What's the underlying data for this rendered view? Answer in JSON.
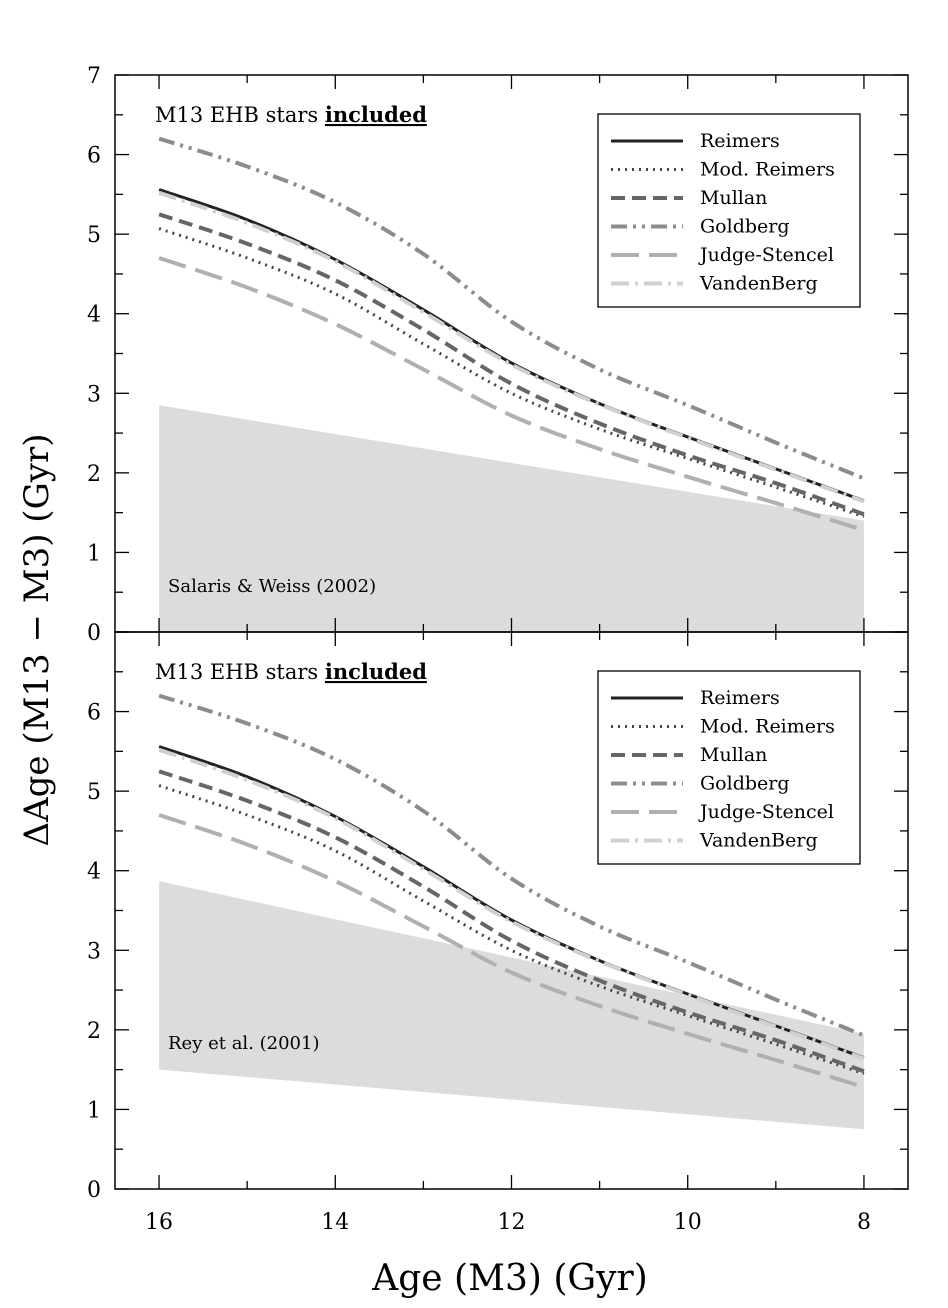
{
  "figure": {
    "xlabel": "Age (M3) (Gyr)",
    "ylabel": "ΔAge (M13 − M3) (Gyr)"
  },
  "styles": {
    "Reimers": {
      "color": "#222222",
      "dash": "",
      "width": 3
    },
    "Mod. Reimers": {
      "color": "#444444",
      "dash": "2 5",
      "width": 3
    },
    "Mullan": {
      "color": "#666666",
      "dash": "14 7",
      "width": 4
    },
    "Goldberg": {
      "color": "#8c8c8c",
      "dash": "16 6 3 6 3 6",
      "width": 4
    },
    "Judge-Stencel": {
      "color": "#b0b0b0",
      "dash": "28 10",
      "width": 4
    },
    "VandenBerg": {
      "color": "#d0d0d0",
      "dash": "18 6 3 6",
      "width": 4
    }
  },
  "chart_data": [
    {
      "type": "line",
      "panel": "top",
      "title": "M13 EHB stars ",
      "title_emphasis": "included",
      "xlim": [
        16.5,
        7.5
      ],
      "ylim": [
        0,
        7
      ],
      "xticks": [
        16,
        14,
        12,
        10,
        8
      ],
      "yticks": [
        0,
        1,
        2,
        3,
        4,
        5,
        6,
        7
      ],
      "legend_position": "top-right",
      "band": {
        "label": "Salaris & Weiss (2002)",
        "x": [
          16,
          8
        ],
        "lower": [
          0,
          0
        ],
        "upper": [
          2.85,
          1.4
        ],
        "color": "#dcdcdc"
      },
      "series": [
        {
          "name": "Reimers",
          "x": [
            16,
            15,
            14,
            13,
            12,
            11,
            10,
            9,
            8
          ],
          "values": [
            5.56,
            5.18,
            4.68,
            4.05,
            3.38,
            2.87,
            2.45,
            2.05,
            1.65
          ]
        },
        {
          "name": "Mod. Reimers",
          "x": [
            16,
            15,
            14,
            13,
            12,
            11,
            10,
            9,
            8
          ],
          "values": [
            5.07,
            4.7,
            4.25,
            3.62,
            3.0,
            2.55,
            2.18,
            1.82,
            1.45
          ]
        },
        {
          "name": "Mullan",
          "x": [
            16,
            15,
            14,
            13,
            12,
            11,
            10,
            9,
            8
          ],
          "values": [
            5.25,
            4.88,
            4.42,
            3.8,
            3.12,
            2.62,
            2.22,
            1.87,
            1.48
          ]
        },
        {
          "name": "Goldberg",
          "x": [
            16,
            15,
            14,
            13,
            12,
            11,
            10,
            9,
            8
          ],
          "values": [
            6.2,
            5.85,
            5.4,
            4.75,
            3.9,
            3.3,
            2.85,
            2.38,
            1.93
          ]
        },
        {
          "name": "Judge-Stencel",
          "x": [
            16,
            15,
            14,
            13,
            12,
            11,
            10,
            9,
            8
          ],
          "values": [
            4.7,
            4.33,
            3.87,
            3.3,
            2.72,
            2.3,
            1.95,
            1.62,
            1.28
          ]
        },
        {
          "name": "VandenBerg",
          "x": [
            16,
            15,
            14,
            13,
            12,
            11,
            10,
            9,
            8
          ],
          "values": [
            5.52,
            5.14,
            4.66,
            4.02,
            3.36,
            2.86,
            2.44,
            2.04,
            1.64
          ]
        }
      ]
    },
    {
      "type": "line",
      "panel": "bottom",
      "title": "M13 EHB stars ",
      "title_emphasis": "included",
      "xlim": [
        16.5,
        7.5
      ],
      "ylim": [
        0,
        7
      ],
      "xticks": [
        16,
        14,
        12,
        10,
        8
      ],
      "yticks": [
        0,
        1,
        2,
        3,
        4,
        5,
        6
      ],
      "legend_position": "top-right",
      "band": {
        "label": "Rey et al. (2001)",
        "x": [
          16,
          8
        ],
        "lower": [
          1.5,
          0.75
        ],
        "upper": [
          3.87,
          1.95
        ],
        "color": "#dcdcdc"
      },
      "series": [
        {
          "name": "Reimers",
          "x": [
            16,
            15,
            14,
            13,
            12,
            11,
            10,
            9,
            8
          ],
          "values": [
            5.56,
            5.18,
            4.68,
            4.05,
            3.38,
            2.87,
            2.45,
            2.05,
            1.65
          ]
        },
        {
          "name": "Mod. Reimers",
          "x": [
            16,
            15,
            14,
            13,
            12,
            11,
            10,
            9,
            8
          ],
          "values": [
            5.07,
            4.7,
            4.25,
            3.62,
            3.0,
            2.55,
            2.18,
            1.82,
            1.45
          ]
        },
        {
          "name": "Mullan",
          "x": [
            16,
            15,
            14,
            13,
            12,
            11,
            10,
            9,
            8
          ],
          "values": [
            5.25,
            4.88,
            4.42,
            3.8,
            3.12,
            2.62,
            2.22,
            1.87,
            1.48
          ]
        },
        {
          "name": "Goldberg",
          "x": [
            16,
            15,
            14,
            13,
            12,
            11,
            10,
            9,
            8
          ],
          "values": [
            6.2,
            5.85,
            5.4,
            4.75,
            3.9,
            3.3,
            2.85,
            2.38,
            1.93
          ]
        },
        {
          "name": "Judge-Stencel",
          "x": [
            16,
            15,
            14,
            13,
            12,
            11,
            10,
            9,
            8
          ],
          "values": [
            4.7,
            4.33,
            3.87,
            3.3,
            2.72,
            2.3,
            1.95,
            1.62,
            1.28
          ]
        },
        {
          "name": "VandenBerg",
          "x": [
            16,
            15,
            14,
            13,
            12,
            11,
            10,
            9,
            8
          ],
          "values": [
            5.52,
            5.14,
            4.66,
            4.02,
            3.36,
            2.86,
            2.44,
            2.04,
            1.64
          ]
        }
      ]
    }
  ]
}
